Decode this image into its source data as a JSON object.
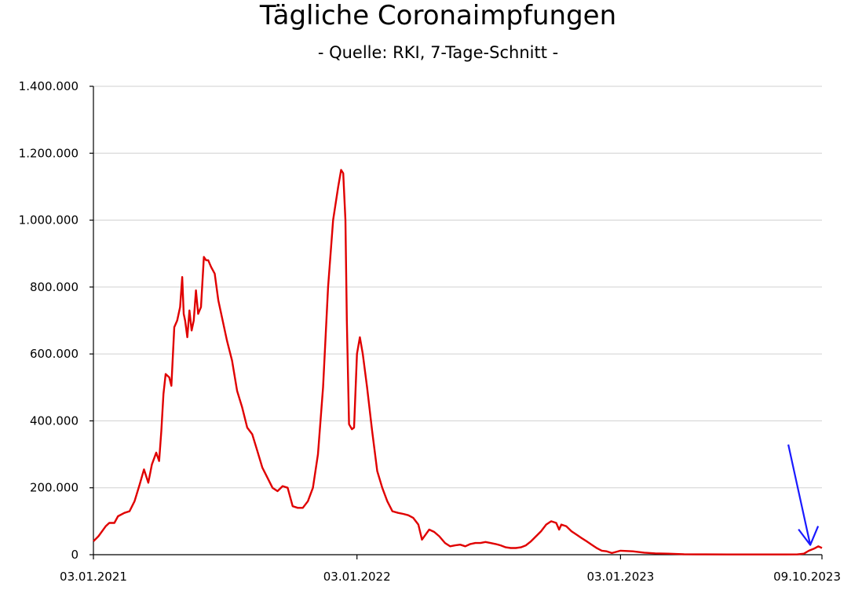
{
  "chart_data": {
    "type": "line",
    "title": "Tägliche Coronaimpfungen",
    "subtitle": "- Quelle: RKI, 7-Tage-Schnitt -",
    "xlabel": "",
    "ylabel": "",
    "xlim": [
      "2021-01-03",
      "2023-10-09"
    ],
    "ylim": [
      0,
      1400000
    ],
    "grid": true,
    "legend": "none",
    "ytick_labels": [
      "0",
      "200.000",
      "400.000",
      "600.000",
      "800.000",
      "1.000.000",
      "1.200.000",
      "1.400.000"
    ],
    "ytick_values": [
      0,
      200000,
      400000,
      600000,
      800000,
      1000000,
      1200000,
      1400000
    ],
    "xtick_labels": [
      "03.01.2021",
      "03.01.2022",
      "03.01.2023",
      "09.10.2023"
    ],
    "xtick_dates": [
      "2021-01-03",
      "2022-01-03",
      "2023-01-03",
      "2023-10-09"
    ],
    "series": [
      {
        "color": "#e00000",
        "points": [
          [
            "2021-01-03",
            40000
          ],
          [
            "2021-01-10",
            55000
          ],
          [
            "2021-01-20",
            85000
          ],
          [
            "2021-01-25",
            95000
          ],
          [
            "2021-02-01",
            95000
          ],
          [
            "2021-02-06",
            115000
          ],
          [
            "2021-02-15",
            125000
          ],
          [
            "2021-02-22",
            130000
          ],
          [
            "2021-03-01",
            160000
          ],
          [
            "2021-03-08",
            210000
          ],
          [
            "2021-03-14",
            255000
          ],
          [
            "2021-03-20",
            215000
          ],
          [
            "2021-03-25",
            270000
          ],
          [
            "2021-03-31",
            305000
          ],
          [
            "2021-04-04",
            280000
          ],
          [
            "2021-04-07",
            370000
          ],
          [
            "2021-04-10",
            480000
          ],
          [
            "2021-04-13",
            540000
          ],
          [
            "2021-04-18",
            530000
          ],
          [
            "2021-04-21",
            505000
          ],
          [
            "2021-04-25",
            680000
          ],
          [
            "2021-04-29",
            700000
          ],
          [
            "2021-05-03",
            740000
          ],
          [
            "2021-05-06",
            830000
          ],
          [
            "2021-05-08",
            720000
          ],
          [
            "2021-05-10",
            700000
          ],
          [
            "2021-05-13",
            650000
          ],
          [
            "2021-05-16",
            730000
          ],
          [
            "2021-05-19",
            670000
          ],
          [
            "2021-05-22",
            700000
          ],
          [
            "2021-05-25",
            790000
          ],
          [
            "2021-05-28",
            720000
          ],
          [
            "2021-06-01",
            740000
          ],
          [
            "2021-06-05",
            890000
          ],
          [
            "2021-06-08",
            880000
          ],
          [
            "2021-06-11",
            880000
          ],
          [
            "2021-06-15",
            860000
          ],
          [
            "2021-06-20",
            840000
          ],
          [
            "2021-06-25",
            760000
          ],
          [
            "2021-07-01",
            700000
          ],
          [
            "2021-07-07",
            640000
          ],
          [
            "2021-07-14",
            580000
          ],
          [
            "2021-07-21",
            490000
          ],
          [
            "2021-07-28",
            440000
          ],
          [
            "2021-08-04",
            380000
          ],
          [
            "2021-08-11",
            360000
          ],
          [
            "2021-08-18",
            310000
          ],
          [
            "2021-08-25",
            260000
          ],
          [
            "2021-09-01",
            230000
          ],
          [
            "2021-09-08",
            200000
          ],
          [
            "2021-09-15",
            190000
          ],
          [
            "2021-09-22",
            205000
          ],
          [
            "2021-09-29",
            200000
          ],
          [
            "2021-10-06",
            145000
          ],
          [
            "2021-10-13",
            140000
          ],
          [
            "2021-10-20",
            140000
          ],
          [
            "2021-10-27",
            160000
          ],
          [
            "2021-11-03",
            200000
          ],
          [
            "2021-11-10",
            300000
          ],
          [
            "2021-11-17",
            500000
          ],
          [
            "2021-11-24",
            800000
          ],
          [
            "2021-12-01",
            1000000
          ],
          [
            "2021-12-08",
            1100000
          ],
          [
            "2021-12-12",
            1150000
          ],
          [
            "2021-12-15",
            1140000
          ],
          [
            "2021-12-18",
            1000000
          ],
          [
            "2021-12-20",
            700000
          ],
          [
            "2021-12-23",
            390000
          ],
          [
            "2021-12-27",
            375000
          ],
          [
            "2021-12-30",
            380000
          ],
          [
            "2022-01-03",
            600000
          ],
          [
            "2022-01-07",
            650000
          ],
          [
            "2022-01-11",
            600000
          ],
          [
            "2022-01-17",
            500000
          ],
          [
            "2022-01-24",
            370000
          ],
          [
            "2022-01-31",
            250000
          ],
          [
            "2022-02-07",
            200000
          ],
          [
            "2022-02-14",
            160000
          ],
          [
            "2022-02-21",
            130000
          ],
          [
            "2022-03-01",
            125000
          ],
          [
            "2022-03-08",
            122000
          ],
          [
            "2022-03-15",
            118000
          ],
          [
            "2022-03-22",
            110000
          ],
          [
            "2022-03-29",
            90000
          ],
          [
            "2022-04-03",
            45000
          ],
          [
            "2022-04-08",
            60000
          ],
          [
            "2022-04-13",
            75000
          ],
          [
            "2022-04-20",
            68000
          ],
          [
            "2022-04-27",
            55000
          ],
          [
            "2022-05-05",
            35000
          ],
          [
            "2022-05-12",
            25000
          ],
          [
            "2022-05-19",
            28000
          ],
          [
            "2022-05-26",
            30000
          ],
          [
            "2022-06-02",
            25000
          ],
          [
            "2022-06-09",
            32000
          ],
          [
            "2022-06-16",
            35000
          ],
          [
            "2022-06-23",
            35000
          ],
          [
            "2022-06-30",
            38000
          ],
          [
            "2022-07-07",
            35000
          ],
          [
            "2022-07-14",
            32000
          ],
          [
            "2022-07-21",
            28000
          ],
          [
            "2022-07-28",
            22000
          ],
          [
            "2022-08-04",
            20000
          ],
          [
            "2022-08-11",
            20000
          ],
          [
            "2022-08-18",
            22000
          ],
          [
            "2022-08-25",
            28000
          ],
          [
            "2022-09-01",
            40000
          ],
          [
            "2022-09-08",
            55000
          ],
          [
            "2022-09-15",
            70000
          ],
          [
            "2022-09-22",
            90000
          ],
          [
            "2022-09-29",
            100000
          ],
          [
            "2022-10-06",
            95000
          ],
          [
            "2022-10-10",
            75000
          ],
          [
            "2022-10-13",
            90000
          ],
          [
            "2022-10-20",
            85000
          ],
          [
            "2022-10-27",
            70000
          ],
          [
            "2022-11-03",
            60000
          ],
          [
            "2022-11-10",
            50000
          ],
          [
            "2022-11-17",
            40000
          ],
          [
            "2022-11-24",
            30000
          ],
          [
            "2022-12-01",
            20000
          ],
          [
            "2022-12-08",
            12000
          ],
          [
            "2022-12-15",
            10000
          ],
          [
            "2022-12-22",
            5000
          ],
          [
            "2023-01-03",
            12000
          ],
          [
            "2023-01-20",
            10000
          ],
          [
            "2023-02-05",
            6000
          ],
          [
            "2023-02-20",
            4000
          ],
          [
            "2023-03-10",
            3000
          ],
          [
            "2023-04-01",
            1500
          ],
          [
            "2023-05-01",
            1000
          ],
          [
            "2023-06-01",
            800
          ],
          [
            "2023-07-01",
            600
          ],
          [
            "2023-08-01",
            600
          ],
          [
            "2023-08-20",
            800
          ],
          [
            "2023-09-05",
            1000
          ],
          [
            "2023-09-14",
            3000
          ],
          [
            "2023-09-21",
            12000
          ],
          [
            "2023-09-28",
            18000
          ],
          [
            "2023-10-04",
            25000
          ],
          [
            "2023-10-09",
            20000
          ]
        ]
      }
    ],
    "annotations": [
      {
        "type": "arrow",
        "color": "#1a1aff",
        "points_to": [
          "2023-09-25",
          15000
        ]
      }
    ]
  }
}
